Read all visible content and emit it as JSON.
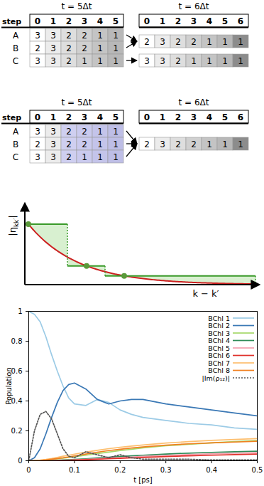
{
  "diagrams": [
    {
      "left": {
        "time": "t = 5Δt",
        "step_label": "step",
        "columns": [
          0,
          1,
          2,
          3,
          4,
          5
        ],
        "rows": [
          {
            "label": "A",
            "cells": [
              3,
              3,
              2,
              2,
              1,
              1
            ]
          },
          {
            "label": "B",
            "cells": [
              2,
              3,
              2,
              2,
              1,
              1
            ]
          },
          {
            "label": "C",
            "cells": [
              3,
              3,
              2,
              1,
              1,
              1
            ]
          }
        ]
      },
      "right": {
        "time": "t = 6Δt",
        "columns": [
          0,
          1,
          2,
          3,
          4,
          5,
          6
        ],
        "rows": [
          {
            "cells": [
              2,
              3,
              2,
              2,
              1,
              1,
              1
            ]
          },
          {
            "cells": [
              3,
              3,
              2,
              1,
              1,
              1,
              1
            ]
          }
        ]
      },
      "arrows": [
        [
          0,
          0
        ],
        [
          1,
          0
        ],
        [
          2,
          1
        ]
      ]
    },
    {
      "left": {
        "time": "t = 5Δt",
        "step_label": "step",
        "columns": [
          0,
          1,
          2,
          3,
          4,
          5
        ],
        "highlight_columns": [
          2,
          3,
          4,
          5
        ],
        "rows": [
          {
            "label": "A",
            "cells": [
              3,
              3,
              2,
              2,
              1,
              1
            ]
          },
          {
            "label": "B",
            "cells": [
              2,
              3,
              2,
              2,
              1,
              1
            ]
          },
          {
            "label": "C",
            "cells": [
              3,
              3,
              2,
              1,
              1,
              1
            ]
          }
        ]
      },
      "right": {
        "time": "t = 6Δt",
        "columns": [
          0,
          1,
          2,
          3,
          4,
          5,
          6
        ],
        "rows": [
          {
            "cells": [
              2,
              3,
              2,
              2,
              1,
              1,
              1
            ]
          }
        ]
      },
      "arrows": [
        [
          0,
          0
        ],
        [
          1,
          0
        ],
        [
          2,
          0
        ]
      ]
    }
  ],
  "schematic": {
    "y_label": {
      "main": "|η",
      "subscript": "kk′",
      "end": "|"
    },
    "x_label": "k − k′"
  },
  "chart_data": {
    "type": "line",
    "x_label": "t [ps]",
    "y_label": "Population",
    "x": [
      0,
      0.0125,
      0.025,
      0.0375,
      0.05,
      0.0625,
      0.075,
      0.0875,
      0.1,
      0.125,
      0.15,
      0.175,
      0.2,
      0.225,
      0.25,
      0.3,
      0.35,
      0.4,
      0.45,
      0.5
    ],
    "xlim": [
      0,
      0.5
    ],
    "xticks": [
      0,
      0.1,
      0.2,
      0.3,
      0.4,
      0.5
    ],
    "ylim": [
      0,
      1
    ],
    "yticks": [
      0,
      0.2,
      0.4,
      0.6,
      0.8,
      1
    ],
    "grid": false,
    "legend": "upper right",
    "series": [
      {
        "name": "BChl 1",
        "color": "#9ccbe6",
        "line_style": "solid",
        "values": [
          1,
          0.98,
          0.93,
          0.83,
          0.71,
          0.6,
          0.5,
          0.42,
          0.38,
          0.37,
          0.41,
          0.39,
          0.34,
          0.31,
          0.29,
          0.27,
          0.25,
          0.24,
          0.22,
          0.21
        ]
      },
      {
        "name": "BChl 2",
        "color": "#3a78b5",
        "line_style": "solid",
        "values": [
          0,
          0.02,
          0.08,
          0.18,
          0.29,
          0.39,
          0.47,
          0.51,
          0.52,
          0.48,
          0.41,
          0.38,
          0.4,
          0.41,
          0.41,
          0.38,
          0.36,
          0.34,
          0.32,
          0.3
        ]
      },
      {
        "name": "BChl 3",
        "color": "#a6d96a",
        "line_style": "solid",
        "values": [
          0,
          0,
          0.002,
          0.005,
          0.008,
          0.012,
          0.017,
          0.022,
          0.027,
          0.037,
          0.048,
          0.058,
          0.068,
          0.077,
          0.086,
          0.1,
          0.11,
          0.12,
          0.128,
          0.135
        ]
      },
      {
        "name": "BChl 4",
        "color": "#2e8b57",
        "line_style": "solid",
        "values": [
          0,
          0,
          0,
          0.001,
          0.002,
          0.003,
          0.005,
          0.007,
          0.009,
          0.013,
          0.018,
          0.023,
          0.028,
          0.033,
          0.037,
          0.045,
          0.051,
          0.056,
          0.06,
          0.064
        ]
      },
      {
        "name": "BChl 5",
        "color": "#f4a0b0",
        "line_style": "solid",
        "values": [
          0,
          0,
          0,
          0,
          0.001,
          0.002,
          0.003,
          0.004,
          0.006,
          0.009,
          0.013,
          0.017,
          0.021,
          0.025,
          0.029,
          0.035,
          0.041,
          0.046,
          0.05,
          0.054
        ]
      },
      {
        "name": "BChl 6",
        "color": "#e0302a",
        "line_style": "solid",
        "values": [
          0,
          0,
          0,
          0,
          0,
          0.001,
          0.002,
          0.003,
          0.004,
          0.007,
          0.01,
          0.013,
          0.016,
          0.019,
          0.022,
          0.028,
          0.033,
          0.037,
          0.041,
          0.045
        ]
      },
      {
        "name": "BChl 7",
        "color": "#fdbf6f",
        "line_style": "solid",
        "values": [
          0,
          0.001,
          0.004,
          0.009,
          0.015,
          0.022,
          0.03,
          0.037,
          0.044,
          0.058,
          0.07,
          0.081,
          0.09,
          0.098,
          0.105,
          0.118,
          0.128,
          0.136,
          0.142,
          0.148
        ]
      },
      {
        "name": "BChl 8",
        "color": "#f08020",
        "line_style": "solid",
        "values": [
          0,
          0,
          0.002,
          0.005,
          0.01,
          0.015,
          0.02,
          0.026,
          0.032,
          0.045,
          0.057,
          0.068,
          0.077,
          0.085,
          0.092,
          0.104,
          0.113,
          0.12,
          0.125,
          0.13
        ]
      },
      {
        "name": "|Im(ρ₁₂)|",
        "color": "#555555",
        "line_style": "dotted",
        "values": [
          0,
          0.2,
          0.31,
          0.33,
          0.28,
          0.18,
          0.08,
          0.03,
          0.02,
          0.06,
          0.04,
          0.02,
          0.04,
          0.02,
          0.01,
          0.01,
          0.01,
          0.005,
          0.005,
          0.005
        ]
      }
    ]
  }
}
